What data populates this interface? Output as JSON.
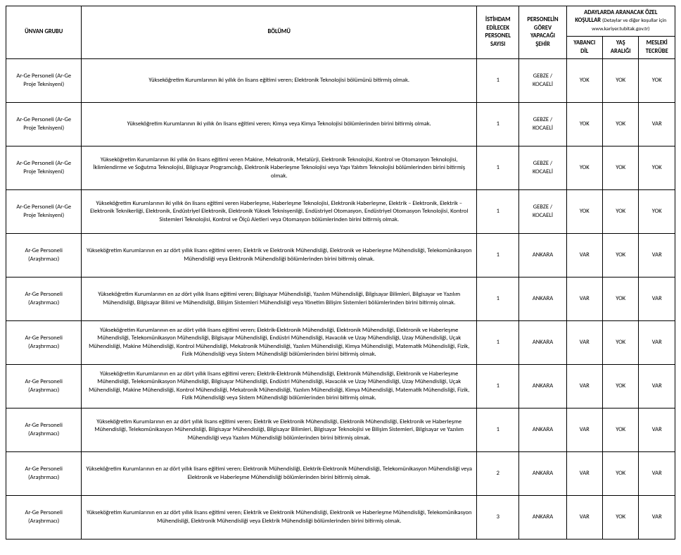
{
  "headers": {
    "unvan_grubu": "ÜNVAN GRUBU",
    "bolumu": "BÖLÜMÜ",
    "istihdam": "İSTİHDAM EDİLECEK PERSONEL SAYISI",
    "sehir": "PERSONELİN GÖREV YAPACAĞI ŞEHİR",
    "ozel_main": "ADAYLARDA ARANACAK ÖZEL KOŞULLAR",
    "ozel_sub": "(Detaylar ve diğer koşullar için www.kariyer.tubitak.gov.tr)",
    "yabanci_dil": "YABANCI DİL",
    "yas_araligi": "YAŞ ARALIĞI",
    "mesleki_tecrube": "MESLEKİ TECRÜBE"
  },
  "rows": [
    {
      "unvan": "Ar-Ge Personeli (Ar-Ge Proje Teknisyeni)",
      "bolumu": "Yükseköğretim Kurumlarının   iki yıllık ön lisans eğitimi veren; Elektronik Teknolojisi bölümünü bitirmiş olmak.",
      "sayisi": "1",
      "sehir": "GEBZE / KOCAELİ",
      "dil": "YOK",
      "yas": "YOK",
      "tecr": "YOK"
    },
    {
      "unvan": "Ar-Ge Personeli (Ar-Ge Proje Teknisyeni)",
      "bolumu": "Yükseköğretim Kurumlarının   iki yıllık ön lisans eğitimi veren; Kimya veya Kimya Teknolojisi bölümlerinden birini bitirmiş olmak.",
      "sayisi": "1",
      "sehir": "GEBZE / KOCAELİ",
      "dil": "YOK",
      "yas": "YOK",
      "tecr": "VAR"
    },
    {
      "unvan": "Ar-Ge Personeli (Ar-Ge Proje Teknisyeni)",
      "bolumu": "Yükseköğretim Kurumlarının   iki yıllık ön lisans eğitimi veren Makine, Mekatronik, Metalürji, Elektronik Teknolojisi, Kontrol ve Otomasyon Teknolojisi, İklimlendirme ve Soğutma Teknolojisi, Bilgisayar Programcılığı, Elektronik Haberleşme Teknolojisi veya Yapı Yalıtım Teknolojisi bölümlerinden birini bitirmiş olmak.",
      "sayisi": "1",
      "sehir": "GEBZE / KOCAELİ",
      "dil": "YOK",
      "yas": "YOK",
      "tecr": "YOK"
    },
    {
      "unvan": "Ar-Ge Personeli (Ar-Ge Proje Teknisyeni)",
      "bolumu": "Yükseköğretim Kurumlarının   iki yıllık ön lisans eğitimi veren Haberleşme, Haberleşme Teknolojisi, Elektronik Haberleşme, Elektrik – Elektronik, Elektrik – Elektronik Teknikerliği, Elektronik, Endüstriyel Elektronik, Elektronik Yüksek Teknisyenliği, Endüstriyel Otomasyon, Endüstriyel Otomasyon Teknolojisi, Kontrol Sistemleri Teknolojisi, Kontrol ve Ölçü Aletleri veya Otomasyon bölümlerinden birini bitirmiş olmak.",
      "sayisi": "1",
      "sehir": "GEBZE / KOCAELİ",
      "dil": "YOK",
      "yas": "YOK",
      "tecr": "YOK"
    },
    {
      "unvan": "Ar-Ge Personeli (Araştırmacı)",
      "bolumu": "Yükseköğretim Kurumlarının en az dört yıllık lisans eğitimi veren; Elektrik ve Elektronik Mühendisliği, Elektronik ve Haberleşme Mühendisliği, Telekomünikasyon Mühendisliği veya Elektronik Mühendisliği bölümlerinden birini bitirmiş olmak.",
      "sayisi": "1",
      "sehir": "ANKARA",
      "dil": "VAR",
      "yas": "YOK",
      "tecr": "VAR"
    },
    {
      "unvan": "Ar-Ge Personeli (Araştırmacı)",
      "bolumu": "Yükseköğretim Kurumlarının en az dört yıllık lisans eğitimi veren; Bilgisayar Mühendisliği, Yazılım Mühendisliği, Bilgisayar Bilimleri, Bilgisayar ve Yazılım Mühendisliği, Bilgisayar Bilimi ve Mühendisliği, Bilişim Sistemleri Mühendisliği veya Yönetim Bilişim Sistemleri bölümlerinden birini bitirmiş olmak.",
      "sayisi": "1",
      "sehir": "ANKARA",
      "dil": "VAR",
      "yas": "YOK",
      "tecr": "VAR"
    },
    {
      "unvan": "Ar-Ge Personeli (Araştırmacı)",
      "bolumu": "Yükseköğretim Kurumlarının en az dört yıllık lisans eğitimi veren; Elektrik-Elektronik Mühendisliği, Elektronik Mühendisliği, Elektronik ve Haberleşme Mühendisliği, Telekomünikasyon Mühendisliği, Bilgisayar Mühendisliği, Endüstri Mühendisliği, Havacılık ve Uzay Mühendisliği, Uzay Mühendisliği, Uçak Mühendisliği, Makine Mühendisliği, Kontrol Mühendisliği, Mekatronik Mühendisliği, Yazılım Mühendisliği, Kimya Mühendisliği, Matematik Mühendisliği, Fizik, Fizik Mühendisliği veya Sistem Mühendisliği bölümlerinden birini bitirmiş olmak.",
      "sayisi": "1",
      "sehir": "ANKARA",
      "dil": "VAR",
      "yas": "YOK",
      "tecr": "VAR"
    },
    {
      "unvan": "Ar-Ge Personeli (Araştırmacı)",
      "bolumu": "Yükseköğretim Kurumlarının en az dört yıllık lisans eğitimi veren;   Elektrik-Elektronik Mühendisliği, Elektronik Mühendisliği, Elektronik ve Haberleşme Mühendisliği, Telekomünikasyon Mühendisliği, Bilgisayar Mühendisliği, Endüstri Mühendisliği, Havacılık ve Uzay Mühendisliği, Uzay Mühendisliği, Uçak Mühendisliği, Makine Mühendisliği, Kontrol Mühendisliği, Mekatronik Mühendisliği, Yazılım Mühendisliği, Kimya Mühendisliği, Matematik Mühendisliği, Fizik, Fizik Mühendisliği veya Sistem Mühendisliği bölümlerinden birini bitirmiş olmak.",
      "sayisi": "1",
      "sehir": "ANKARA",
      "dil": "VAR",
      "yas": "YOK",
      "tecr": "VAR"
    },
    {
      "unvan": "Ar-Ge Personeli (Araştırmacı)",
      "bolumu": "Yükseköğretim Kurumlarının en az dört yıllık lisans eğitimi veren; Elektrik ve Elektronik Mühendisliği, Elektronik Mühendisliği, Elektronik ve Haberleşme Mühendisliği, Telekomünikasyon Mühendisliği, Bilgisayar Mühendisliği, Bilgisayar Bilimleri, Bilgisayar Teknolojisi ve Bilişim Sistemleri, Bilgisayar ve Yazılım Mühendisliği veya Yazılım Mühendisliği bölümlerinden birini bitirmiş olmak.",
      "sayisi": "1",
      "sehir": "ANKARA",
      "dil": "VAR",
      "yas": "YOK",
      "tecr": "VAR"
    },
    {
      "unvan": "Ar-Ge Personeli (Araştırmacı)",
      "bolumu": "Yükseköğretim Kurumlarının en az dört yıllık lisans eğitimi veren; Elektronik Mühendisliği, Elektrik-Elektronik Mühendisliği, Telekomünikasyon Mühendisliği veya Elektronik ve Haberleşme Mühendisliği bölümlerinden birini bitirmiş olmak.",
      "sayisi": "2",
      "sehir": "ANKARA",
      "dil": "VAR",
      "yas": "YOK",
      "tecr": "VAR"
    },
    {
      "unvan": "Ar-Ge Personeli (Araştırmacı)",
      "bolumu": "Yükseköğretim Kurumlarının en az dört yıllık lisans eğitimi veren; Elektrik ve Elektronik Mühendisliği, Elektronik ve Haberleşme Mühendisliği, Telekomünikasyon Mühendisliği, Elektronik Mühendisliği veya Elektrik Mühendisliği bölümlerinden birini bitirmiş olmak.",
      "sayisi": "3",
      "sehir": "ANKARA",
      "dil": "VAR",
      "yas": "YOK",
      "tecr": "VAR"
    }
  ]
}
